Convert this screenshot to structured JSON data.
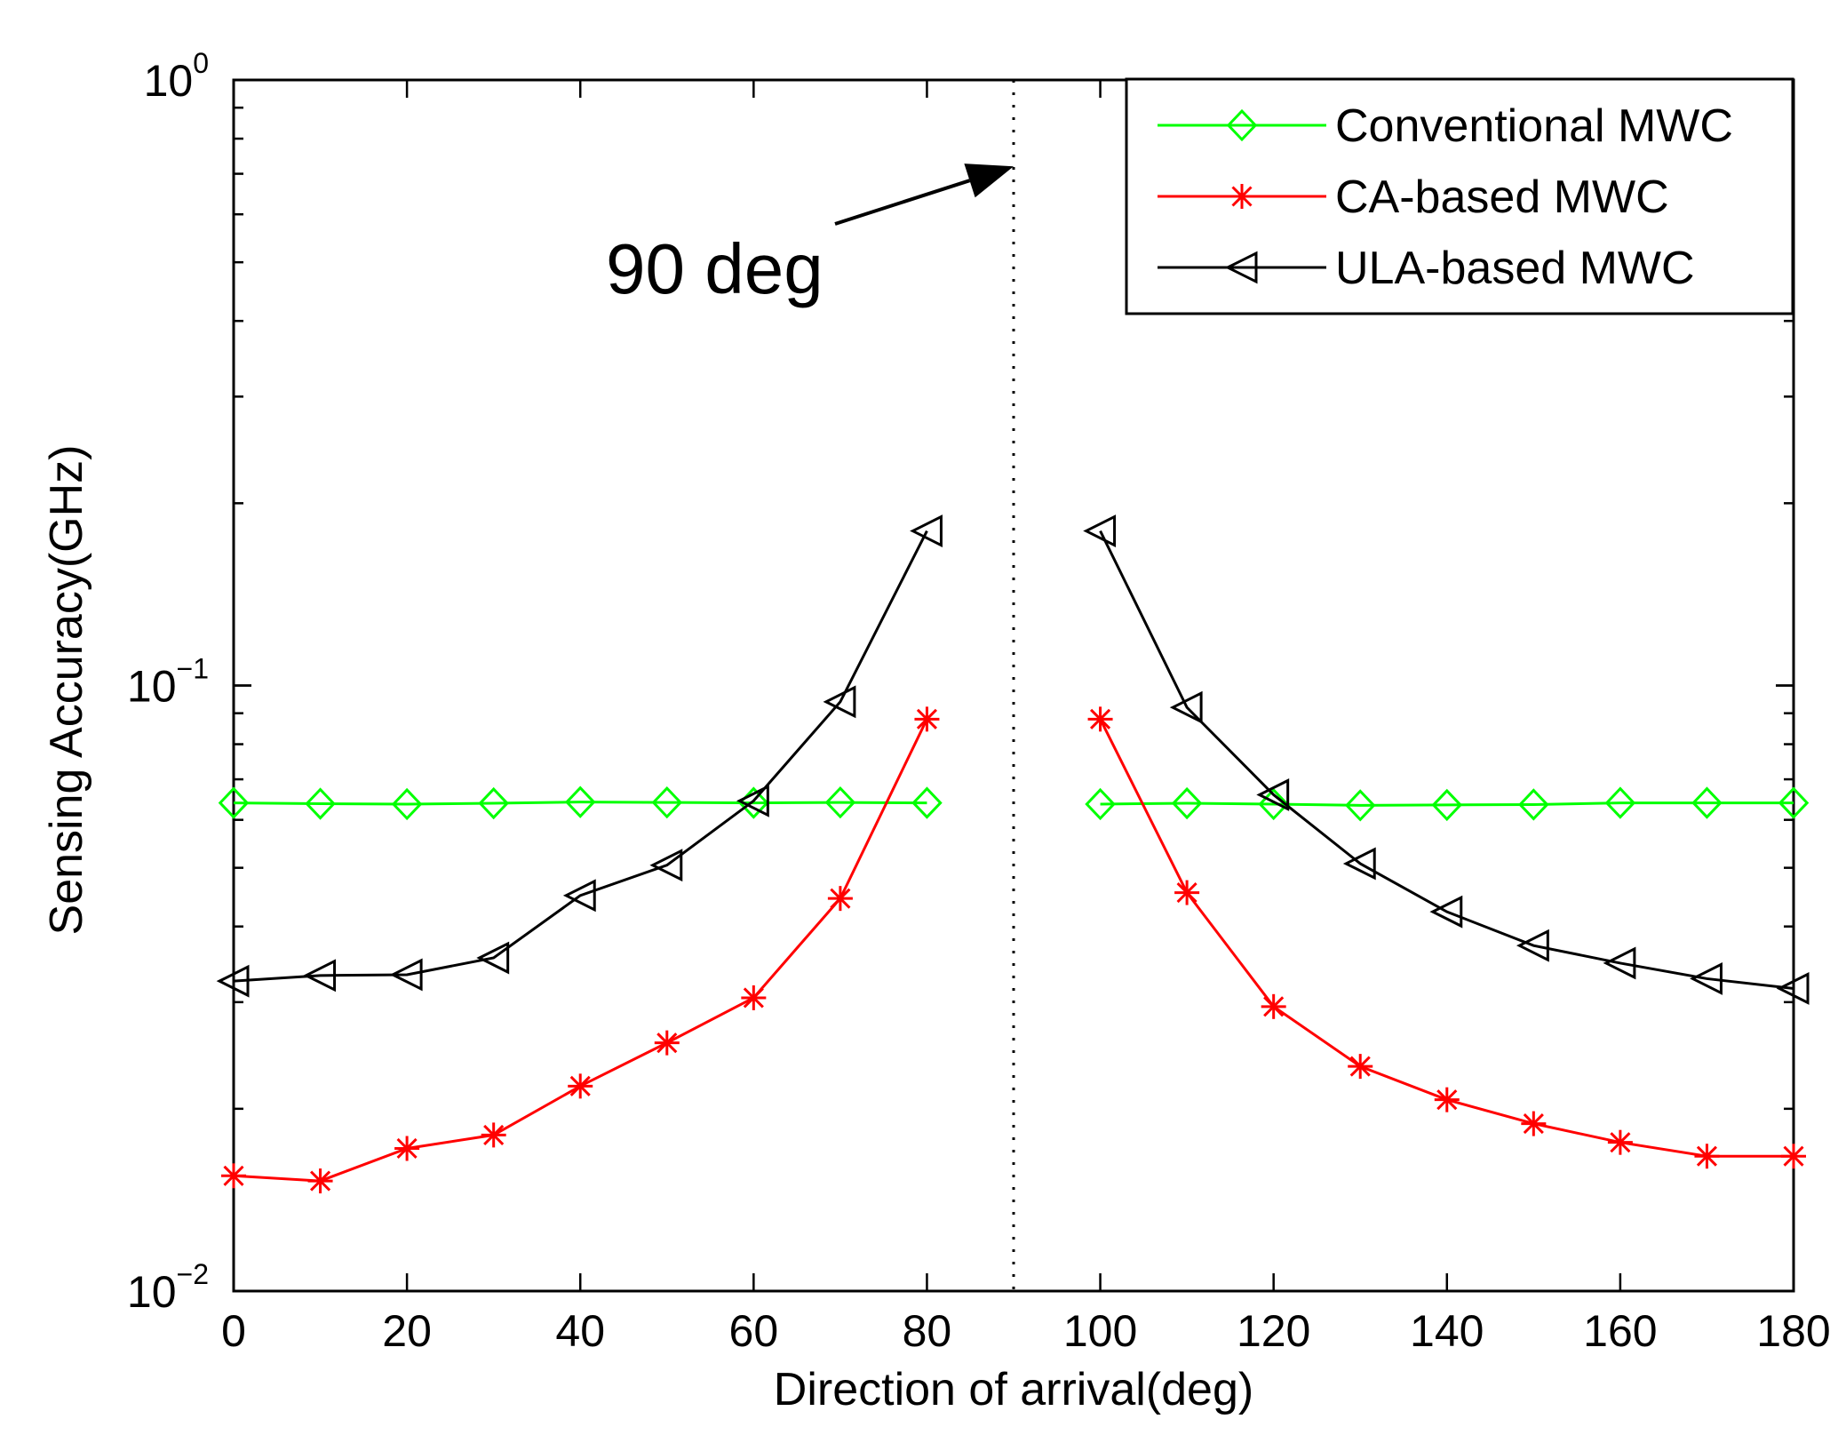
{
  "chart_data": {
    "type": "line",
    "title": "",
    "xlabel": "Direction of arrival(deg)",
    "ylabel": "Sensing Accuracy(GHz)",
    "xlim": [
      0,
      180
    ],
    "ylim": [
      0.01,
      1
    ],
    "yscale": "log",
    "grid": false,
    "legend_position": "top-right",
    "x_ticks": [
      0,
      20,
      40,
      60,
      80,
      100,
      120,
      140,
      160,
      180
    ],
    "x_tick_labels": [
      "0",
      "20",
      "40",
      "60",
      "80",
      "100",
      "120",
      "140",
      "160",
      "180"
    ],
    "y_ticks": [
      {
        "base": "10",
        "exp": "−2",
        "value": 0.01
      },
      {
        "base": "10",
        "exp": "−1",
        "value": 0.1
      },
      {
        "base": "10",
        "exp": "0",
        "value": 1
      }
    ],
    "x": [
      0,
      10,
      20,
      30,
      40,
      50,
      60,
      70,
      80,
      100,
      110,
      120,
      130,
      140,
      150,
      160,
      170,
      180
    ],
    "series": [
      {
        "name": "Conventional MWC",
        "color": "#00ff00",
        "marker": "diamond",
        "values": [
          0.064,
          0.0638,
          0.0637,
          0.0639,
          0.0642,
          0.0641,
          0.064,
          0.0641,
          0.064,
          0.0637,
          0.0639,
          0.0637,
          0.0634,
          0.0635,
          0.0636,
          0.064,
          0.064,
          0.064
        ]
      },
      {
        "name": "CA-based MWC",
        "color": "#ff0000",
        "marker": "star",
        "values": [
          0.0155,
          0.0152,
          0.0172,
          0.0181,
          0.0218,
          0.0257,
          0.0305,
          0.0445,
          0.088,
          0.088,
          0.0455,
          0.0295,
          0.0235,
          0.0207,
          0.0189,
          0.0176,
          0.0167,
          0.0167
        ]
      },
      {
        "name": "ULA-based MWC",
        "color": "#000000",
        "marker": "triangle-left",
        "values": [
          0.0325,
          0.0332,
          0.0333,
          0.0355,
          0.045,
          0.0505,
          0.0645,
          0.094,
          0.18,
          0.18,
          0.092,
          0.066,
          0.0508,
          0.0423,
          0.0372,
          0.0348,
          0.0328,
          0.0316
        ]
      }
    ],
    "reference_line": {
      "x": 90,
      "style": "dotted",
      "color": "#000000"
    },
    "annotations": [
      {
        "text": "90 deg",
        "arrow_to_x": 90,
        "arrow_to_y": 0.72
      }
    ]
  }
}
